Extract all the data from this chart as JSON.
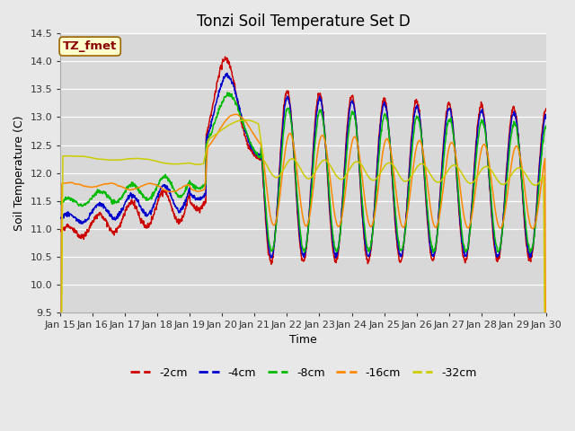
{
  "title": "Tonzi Soil Temperature Set D",
  "xlabel": "Time",
  "ylabel": "Soil Temperature (C)",
  "ylim": [
    9.5,
    14.5
  ],
  "yticks": [
    9.5,
    10.0,
    10.5,
    11.0,
    11.5,
    12.0,
    12.5,
    13.0,
    13.5,
    14.0,
    14.5
  ],
  "legend_label": "TZ_fmet",
  "colors": {
    "-2cm": "#cc0000",
    "-4cm": "#0000cc",
    "-8cm": "#00bb00",
    "-16cm": "#ff8800",
    "-32cm": "#cccc00"
  },
  "xtick_labels": [
    "Jan 15",
    "Jan 16",
    "Jan 17",
    "Jan 18",
    "Jan 19",
    "Jan 20",
    "Jan 21",
    "Jan 22",
    "Jan 23",
    "Jan 24",
    "Jan 25",
    "Jan 26",
    "Jan 27",
    "Jan 28",
    "Jan 29",
    "Jan 30"
  ],
  "title_fontsize": 12,
  "axis_fontsize": 9,
  "tick_fontsize": 8,
  "legend_fontsize": 9,
  "bg_color": "#d8d8d8",
  "fig_color": "#e8e8e8",
  "grid_color": "#ffffff"
}
